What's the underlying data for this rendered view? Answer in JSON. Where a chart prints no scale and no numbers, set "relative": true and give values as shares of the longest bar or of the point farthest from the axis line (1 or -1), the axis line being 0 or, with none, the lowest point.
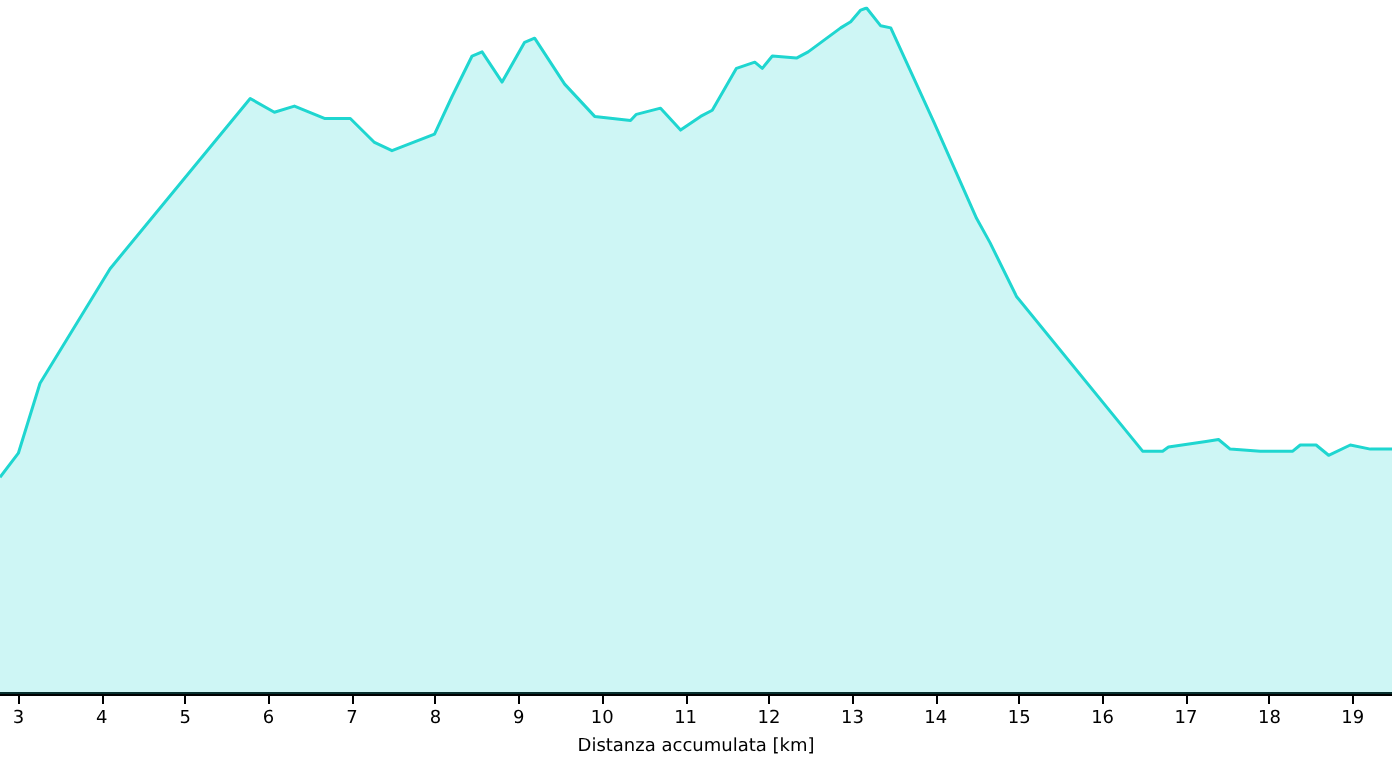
{
  "chart_data": {
    "type": "area",
    "xlabel": "Distanza accumulata [km]",
    "relative": true,
    "xlim": [
      2.78,
      19.47
    ],
    "xticks": [
      3,
      4,
      5,
      6,
      7,
      8,
      9,
      10,
      11,
      12,
      13,
      14,
      15,
      16,
      17,
      18,
      19
    ],
    "marker": "none",
    "series": [
      {
        "color": "#1fd6d0",
        "x": [
          2.78,
          3.0,
          3.26,
          4.1,
          5.78,
          6.07,
          6.31,
          6.67,
          6.98,
          7.27,
          7.48,
          7.99,
          8.2,
          8.44,
          8.56,
          8.8,
          9.07,
          9.19,
          9.55,
          9.91,
          10.34,
          10.41,
          10.7,
          10.94,
          11.18,
          11.32,
          11.61,
          11.83,
          11.92,
          12.04,
          12.33,
          12.47,
          12.86,
          12.98,
          13.1,
          13.17,
          13.34,
          13.46,
          13.98,
          14.49,
          14.65,
          14.97,
          16.48,
          16.72,
          16.79,
          17.24,
          17.39,
          17.53,
          17.89,
          18.28,
          18.37,
          18.56,
          18.71,
          18.97,
          19.21,
          19.47
        ],
        "values": [
          0.316,
          0.351,
          0.453,
          0.62,
          0.868,
          0.848,
          0.857,
          0.839,
          0.839,
          0.804,
          0.792,
          0.816,
          0.871,
          0.93,
          0.936,
          0.892,
          0.95,
          0.956,
          0.889,
          0.842,
          0.836,
          0.845,
          0.854,
          0.822,
          0.842,
          0.851,
          0.912,
          0.921,
          0.912,
          0.93,
          0.927,
          0.936,
          0.971,
          0.98,
          0.997,
          1,
          0.974,
          0.971,
          0.833,
          0.693,
          0.658,
          0.579,
          0.354,
          0.354,
          0.36,
          0.368,
          0.371,
          0.357,
          0.354,
          0.354,
          0.363,
          0.363,
          0.348,
          0.363,
          0.357,
          0.357
        ]
      }
    ]
  }
}
